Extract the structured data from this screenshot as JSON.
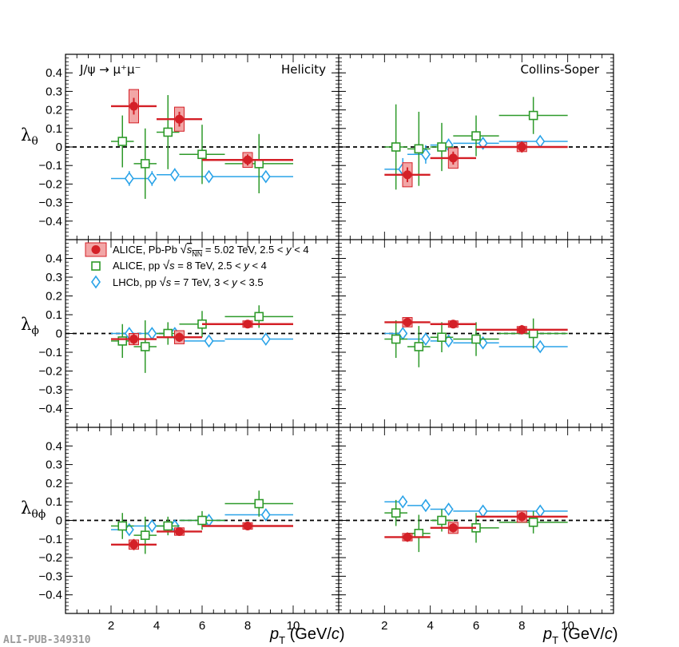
{
  "chart_data": {
    "type": "scatter",
    "panel_grid": {
      "rows": [
        "lambda_theta",
        "lambda_phi",
        "lambda_theta_phi"
      ],
      "columns": [
        "Helicity",
        "Collins-Soper"
      ]
    },
    "x_axis": {
      "label": "p_T (GeV/c)",
      "range": [
        0,
        12
      ],
      "ticks": [
        2,
        4,
        6,
        8,
        10
      ]
    },
    "y_axis": {
      "range": [
        -0.5,
        0.5
      ],
      "ticks": [
        -0.4,
        -0.3,
        -0.2,
        -0.1,
        0,
        0.1,
        0.2,
        0.3,
        0.4
      ]
    },
    "zero_line": "dashed",
    "annotations": {
      "reaction": "J/ψ → μ⁺μ⁻",
      "frame_helicity": "Helicity",
      "frame_cs": "Collins-Soper"
    },
    "legend": [
      {
        "series": "alice_pbpb",
        "label": "ALICE, Pb-Pb √sNN = 5.02 TeV, 2.5 < y < 4"
      },
      {
        "series": "alice_pp",
        "label": "ALICE, pp √s = 8 TeV, 2.5 < y < 4"
      },
      {
        "series": "lhcb_pp",
        "label": "LHCb, pp √s = 7 TeV, 3 < y < 3.5"
      }
    ],
    "colors": {
      "alice_pbpb": "#d42027",
      "alice_pbpb_box": "#f2a6a6",
      "alice_pp": "#2e9a2a",
      "lhcb_pp": "#2aa3e8"
    },
    "panels": [
      {
        "row": "lambda_theta",
        "frame": "Helicity",
        "series": {
          "alice_pbpb": [
            {
              "x": 3.0,
              "y": 0.22,
              "xlow": 2.0,
              "xhigh": 4.0,
              "ystat": 0.045,
              "ysys": 0.09
            },
            {
              "x": 5.0,
              "y": 0.15,
              "xlow": 4.0,
              "xhigh": 6.0,
              "ystat": 0.04,
              "ysys": 0.065
            },
            {
              "x": 8.0,
              "y": -0.07,
              "xlow": 6.0,
              "xhigh": 10.0,
              "ystat": 0.03,
              "ysys": 0.04
            }
          ],
          "alice_pp": [
            {
              "x": 2.5,
              "y": 0.03,
              "xlow": 2.0,
              "xhigh": 3.0,
              "yerr": 0.14
            },
            {
              "x": 3.5,
              "y": -0.09,
              "xlow": 3.0,
              "xhigh": 4.0,
              "yerr": 0.19
            },
            {
              "x": 4.5,
              "y": 0.08,
              "xlow": 4.0,
              "xhigh": 5.0,
              "yerr": 0.2
            },
            {
              "x": 6.0,
              "y": -0.04,
              "xlow": 5.0,
              "xhigh": 7.0,
              "yerr": 0.16
            },
            {
              "x": 8.5,
              "y": -0.09,
              "xlow": 7.0,
              "xhigh": 10.0,
              "yerr": 0.16
            }
          ],
          "lhcb_pp": [
            {
              "x": 2.8,
              "y": -0.17,
              "xlow": 2.0,
              "xhigh": 3.0,
              "yerr": 0.04
            },
            {
              "x": 3.8,
              "y": -0.17,
              "xlow": 3.0,
              "xhigh": 4.0,
              "yerr": 0.04
            },
            {
              "x": 4.8,
              "y": -0.15,
              "xlow": 4.0,
              "xhigh": 5.0,
              "yerr": 0.035
            },
            {
              "x": 6.3,
              "y": -0.16,
              "xlow": 5.0,
              "xhigh": 7.0,
              "yerr": 0.03
            },
            {
              "x": 8.8,
              "y": -0.16,
              "xlow": 7.0,
              "xhigh": 10.0,
              "yerr": 0.03
            }
          ]
        }
      },
      {
        "row": "lambda_theta",
        "frame": "Collins-Soper",
        "series": {
          "alice_pbpb": [
            {
              "x": 3.0,
              "y": -0.15,
              "xlow": 2.0,
              "xhigh": 4.0,
              "ystat": 0.04,
              "ysys": 0.065
            },
            {
              "x": 5.0,
              "y": -0.06,
              "xlow": 4.0,
              "xhigh": 6.0,
              "ystat": 0.035,
              "ysys": 0.055
            },
            {
              "x": 8.0,
              "y": 0.0,
              "xlow": 6.0,
              "xhigh": 10.0,
              "ystat": 0.03,
              "ysys": 0.025
            }
          ],
          "alice_pp": [
            {
              "x": 2.5,
              "y": 0.0,
              "xlow": 2.0,
              "xhigh": 3.0,
              "yerr": 0.23
            },
            {
              "x": 3.5,
              "y": -0.01,
              "xlow": 3.0,
              "xhigh": 4.0,
              "yerr": 0.2
            },
            {
              "x": 4.5,
              "y": 0.0,
              "xlow": 4.0,
              "xhigh": 5.0,
              "yerr": 0.13
            },
            {
              "x": 6.0,
              "y": 0.06,
              "xlow": 5.0,
              "xhigh": 7.0,
              "yerr": 0.11
            },
            {
              "x": 8.5,
              "y": 0.17,
              "xlow": 7.0,
              "xhigh": 10.0,
              "yerr": 0.1
            }
          ],
          "lhcb_pp": [
            {
              "x": 2.8,
              "y": -0.12,
              "xlow": 2.0,
              "xhigh": 3.0,
              "yerr": 0.06
            },
            {
              "x": 3.8,
              "y": -0.04,
              "xlow": 3.0,
              "xhigh": 4.0,
              "yerr": 0.05
            },
            {
              "x": 4.8,
              "y": 0.01,
              "xlow": 4.0,
              "xhigh": 5.0,
              "yerr": 0.035
            },
            {
              "x": 6.3,
              "y": 0.02,
              "xlow": 5.0,
              "xhigh": 7.0,
              "yerr": 0.03
            },
            {
              "x": 8.8,
              "y": 0.03,
              "xlow": 7.0,
              "xhigh": 10.0,
              "yerr": 0.03
            }
          ]
        }
      },
      {
        "row": "lambda_phi",
        "frame": "Helicity",
        "series": {
          "alice_pbpb": [
            {
              "x": 3.0,
              "y": -0.03,
              "xlow": 2.0,
              "xhigh": 4.0,
              "ystat": 0.03,
              "ysys": 0.03
            },
            {
              "x": 5.0,
              "y": -0.02,
              "xlow": 4.0,
              "xhigh": 6.0,
              "ystat": 0.025,
              "ysys": 0.035
            },
            {
              "x": 8.0,
              "y": 0.05,
              "xlow": 6.0,
              "xhigh": 10.0,
              "ystat": 0.015,
              "ysys": 0.01
            }
          ],
          "alice_pp": [
            {
              "x": 2.5,
              "y": -0.04,
              "xlow": 2.0,
              "xhigh": 3.0,
              "yerr": 0.09
            },
            {
              "x": 3.5,
              "y": -0.07,
              "xlow": 3.0,
              "xhigh": 4.0,
              "yerr": 0.14
            },
            {
              "x": 4.5,
              "y": 0.0,
              "xlow": 4.0,
              "xhigh": 5.0,
              "yerr": 0.06
            },
            {
              "x": 6.0,
              "y": 0.05,
              "xlow": 5.0,
              "xhigh": 7.0,
              "yerr": 0.07
            },
            {
              "x": 8.5,
              "y": 0.09,
              "xlow": 7.0,
              "xhigh": 10.0,
              "yerr": 0.06
            }
          ],
          "lhcb_pp": [
            {
              "x": 2.8,
              "y": 0.0,
              "xlow": 2.0,
              "xhigh": 3.0,
              "yerr": 0.02
            },
            {
              "x": 3.8,
              "y": 0.0,
              "xlow": 3.0,
              "xhigh": 4.0,
              "yerr": 0.02
            },
            {
              "x": 4.8,
              "y": 0.0,
              "xlow": 4.0,
              "xhigh": 5.0,
              "yerr": 0.015
            },
            {
              "x": 6.3,
              "y": -0.04,
              "xlow": 5.0,
              "xhigh": 7.0,
              "yerr": 0.015
            },
            {
              "x": 8.8,
              "y": -0.03,
              "xlow": 7.0,
              "xhigh": 10.0,
              "yerr": 0.015
            }
          ]
        }
      },
      {
        "row": "lambda_phi",
        "frame": "Collins-Soper",
        "series": {
          "alice_pbpb": [
            {
              "x": 3.0,
              "y": 0.06,
              "xlow": 2.0,
              "xhigh": 4.0,
              "ystat": 0.025,
              "ysys": 0.025
            },
            {
              "x": 5.0,
              "y": 0.05,
              "xlow": 4.0,
              "xhigh": 6.0,
              "ystat": 0.02,
              "ysys": 0.015
            },
            {
              "x": 8.0,
              "y": 0.02,
              "xlow": 6.0,
              "xhigh": 10.0,
              "ystat": 0.025,
              "ysys": 0.015
            }
          ],
          "alice_pp": [
            {
              "x": 2.5,
              "y": -0.03,
              "xlow": 2.0,
              "xhigh": 3.0,
              "yerr": 0.1
            },
            {
              "x": 3.5,
              "y": -0.07,
              "xlow": 3.0,
              "xhigh": 4.0,
              "yerr": 0.11
            },
            {
              "x": 4.5,
              "y": -0.02,
              "xlow": 4.0,
              "xhigh": 5.0,
              "yerr": 0.08
            },
            {
              "x": 6.0,
              "y": -0.03,
              "xlow": 5.0,
              "xhigh": 7.0,
              "yerr": 0.09
            },
            {
              "x": 8.5,
              "y": 0.0,
              "xlow": 7.0,
              "xhigh": 10.0,
              "yerr": 0.08
            }
          ],
          "lhcb_pp": [
            {
              "x": 2.8,
              "y": 0.0,
              "xlow": 2.0,
              "xhigh": 3.0,
              "yerr": 0.03
            },
            {
              "x": 3.8,
              "y": -0.03,
              "xlow": 3.0,
              "xhigh": 4.0,
              "yerr": 0.02
            },
            {
              "x": 4.8,
              "y": -0.04,
              "xlow": 4.0,
              "xhigh": 5.0,
              "yerr": 0.02
            },
            {
              "x": 6.3,
              "y": -0.05,
              "xlow": 5.0,
              "xhigh": 7.0,
              "yerr": 0.02
            },
            {
              "x": 8.8,
              "y": -0.07,
              "xlow": 7.0,
              "xhigh": 10.0,
              "yerr": 0.025
            }
          ]
        }
      },
      {
        "row": "lambda_theta_phi",
        "frame": "Helicity",
        "series": {
          "alice_pbpb": [
            {
              "x": 3.0,
              "y": -0.13,
              "xlow": 2.0,
              "xhigh": 4.0,
              "ystat": 0.03,
              "ysys": 0.025
            },
            {
              "x": 5.0,
              "y": -0.06,
              "xlow": 4.0,
              "xhigh": 6.0,
              "ystat": 0.02,
              "ysys": 0.02
            },
            {
              "x": 8.0,
              "y": -0.03,
              "xlow": 6.0,
              "xhigh": 10.0,
              "ystat": 0.015,
              "ysys": 0.015
            }
          ],
          "alice_pp": [
            {
              "x": 2.5,
              "y": -0.03,
              "xlow": 2.0,
              "xhigh": 3.0,
              "yerr": 0.07
            },
            {
              "x": 3.5,
              "y": -0.08,
              "xlow": 3.0,
              "xhigh": 4.0,
              "yerr": 0.1
            },
            {
              "x": 4.5,
              "y": -0.03,
              "xlow": 4.0,
              "xhigh": 5.0,
              "yerr": 0.05
            },
            {
              "x": 6.0,
              "y": 0.0,
              "xlow": 5.0,
              "xhigh": 7.0,
              "yerr": 0.05
            },
            {
              "x": 8.5,
              "y": 0.09,
              "xlow": 7.0,
              "xhigh": 10.0,
              "yerr": 0.07
            }
          ],
          "lhcb_pp": [
            {
              "x": 2.8,
              "y": -0.05,
              "xlow": 2.0,
              "xhigh": 3.0,
              "yerr": 0.02
            },
            {
              "x": 3.8,
              "y": -0.03,
              "xlow": 3.0,
              "xhigh": 4.0,
              "yerr": 0.02
            },
            {
              "x": 4.8,
              "y": -0.03,
              "xlow": 4.0,
              "xhigh": 5.0,
              "yerr": 0.015
            },
            {
              "x": 6.3,
              "y": 0.0,
              "xlow": 5.0,
              "xhigh": 7.0,
              "yerr": 0.015
            },
            {
              "x": 8.8,
              "y": 0.03,
              "xlow": 7.0,
              "xhigh": 10.0,
              "yerr": 0.015
            }
          ]
        }
      },
      {
        "row": "lambda_theta_phi",
        "frame": "Collins-Soper",
        "series": {
          "alice_pbpb": [
            {
              "x": 3.0,
              "y": -0.09,
              "xlow": 2.0,
              "xhigh": 4.0,
              "ystat": 0.025,
              "ysys": 0.02
            },
            {
              "x": 5.0,
              "y": -0.04,
              "xlow": 4.0,
              "xhigh": 6.0,
              "ystat": 0.025,
              "ysys": 0.03
            },
            {
              "x": 8.0,
              "y": 0.02,
              "xlow": 6.0,
              "xhigh": 10.0,
              "ystat": 0.025,
              "ysys": 0.03
            }
          ],
          "alice_pp": [
            {
              "x": 2.5,
              "y": 0.04,
              "xlow": 2.0,
              "xhigh": 3.0,
              "yerr": 0.07
            },
            {
              "x": 3.5,
              "y": -0.07,
              "xlow": 3.0,
              "xhigh": 4.0,
              "yerr": 0.1
            },
            {
              "x": 4.5,
              "y": 0.0,
              "xlow": 4.0,
              "xhigh": 5.0,
              "yerr": 0.06
            },
            {
              "x": 6.0,
              "y": -0.04,
              "xlow": 5.0,
              "xhigh": 7.0,
              "yerr": 0.08
            },
            {
              "x": 8.5,
              "y": -0.01,
              "xlow": 7.0,
              "xhigh": 10.0,
              "yerr": 0.06
            }
          ],
          "lhcb_pp": [
            {
              "x": 2.8,
              "y": 0.1,
              "xlow": 2.0,
              "xhigh": 3.0,
              "yerr": 0.025
            },
            {
              "x": 3.8,
              "y": 0.08,
              "xlow": 3.0,
              "xhigh": 4.0,
              "yerr": 0.02
            },
            {
              "x": 4.8,
              "y": 0.06,
              "xlow": 4.0,
              "xhigh": 5.0,
              "yerr": 0.02
            },
            {
              "x": 6.3,
              "y": 0.05,
              "xlow": 5.0,
              "xhigh": 7.0,
              "yerr": 0.015
            },
            {
              "x": 8.8,
              "y": 0.05,
              "xlow": 7.0,
              "xhigh": 10.0,
              "yerr": 0.015
            }
          ]
        }
      }
    ]
  },
  "watermark": "ALI-PUB-349310"
}
